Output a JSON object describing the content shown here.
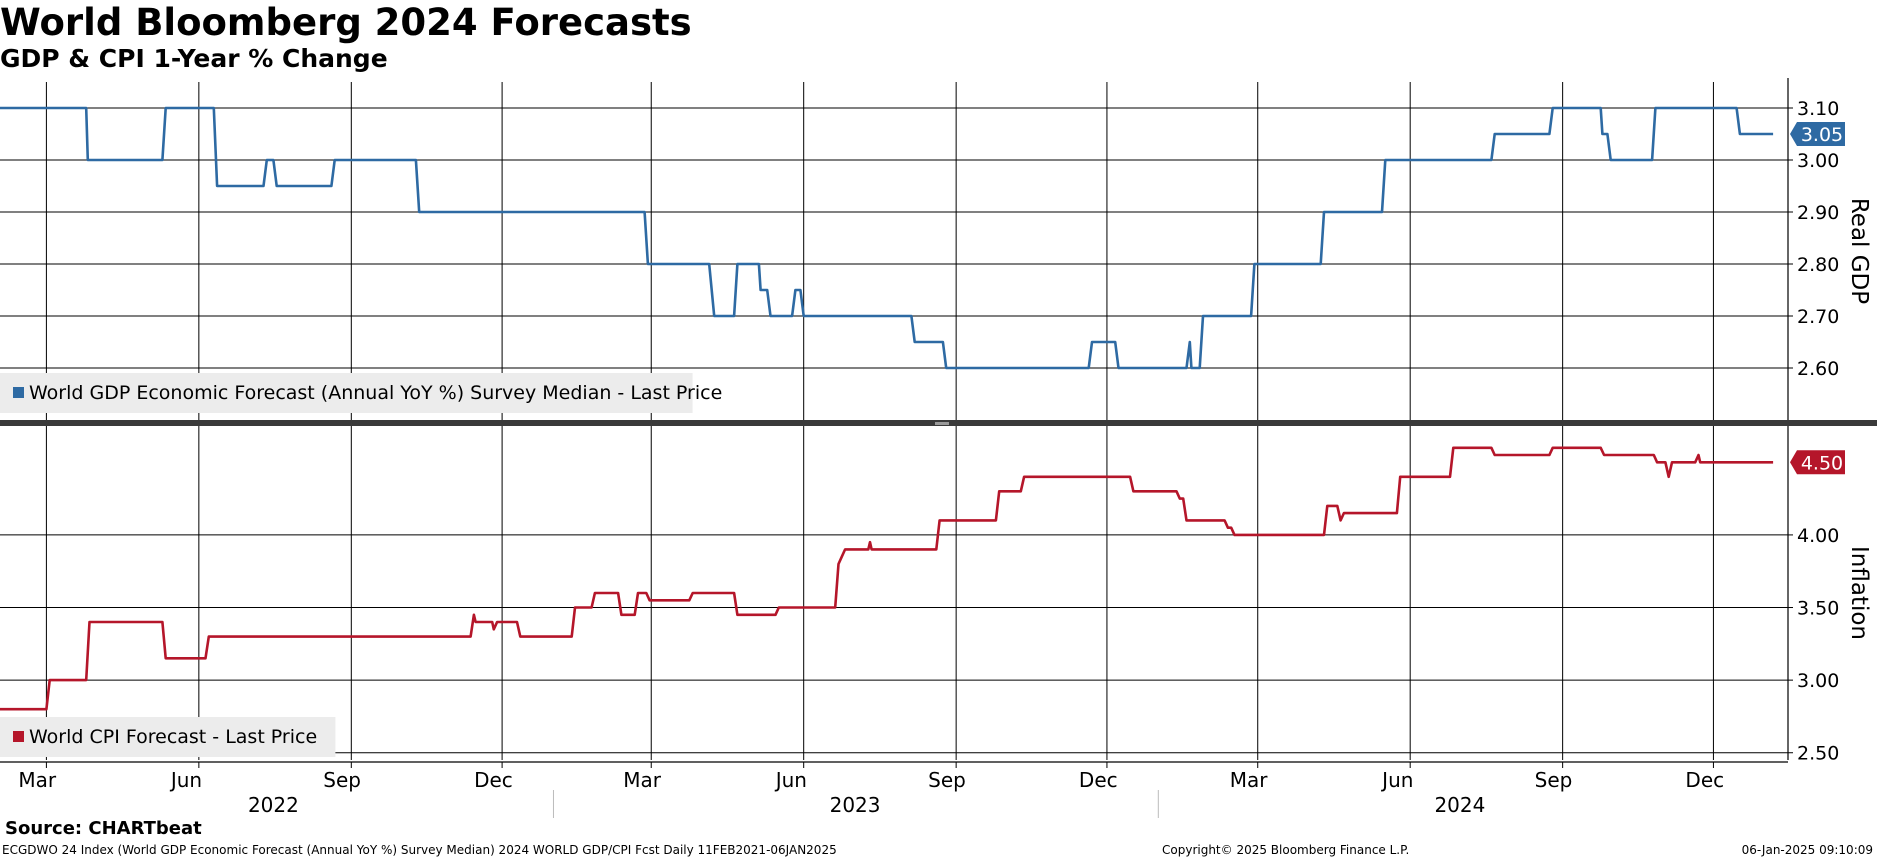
{
  "header": {
    "title": "World Bloomberg 2024 Forecasts",
    "subtitle": "GDP & CPI 1-Year % Change"
  },
  "footer": {
    "source": "Source: CHARTbeat",
    "info": "ECGDWO 24 Index (World GDP Economic Forecast (Annual YoY %) Survey Median) 2024 WORLD GDP/CPI Fcst  Daily 11FEB2021-06JAN2025",
    "copyright": "Copyright© 2025 Bloomberg Finance L.P.",
    "timestamp": "06-Jan-2025 09:10:09"
  },
  "chart_data": [
    {
      "type": "line",
      "panel": "top",
      "axis_label": "Real GDP",
      "x_range": [
        "2022-02-01",
        "2025-01-15"
      ],
      "ylim": [
        2.5,
        3.15
      ],
      "y_ticks": [
        "2.60",
        "2.70",
        "2.80",
        "2.90",
        "3.00",
        "3.10"
      ],
      "grid": true,
      "legend_position": "bottom-left",
      "last_value_label": "3.05",
      "color": "#2e6aa3",
      "series": [
        {
          "name": "World GDP Economic Forecast (Annual YoY %) Survey Median - Last Price",
          "points": [
            [
              "2022-02-01",
              3.1
            ],
            [
              "2022-03-25",
              3.1
            ],
            [
              "2022-03-26",
              3.0
            ],
            [
              "2022-05-10",
              3.0
            ],
            [
              "2022-05-12",
              3.1
            ],
            [
              "2022-06-10",
              3.1
            ],
            [
              "2022-06-12",
              2.95
            ],
            [
              "2022-07-10",
              2.95
            ],
            [
              "2022-07-12",
              3.0
            ],
            [
              "2022-07-16",
              3.0
            ],
            [
              "2022-07-18",
              2.95
            ],
            [
              "2022-08-20",
              2.95
            ],
            [
              "2022-08-22",
              3.0
            ],
            [
              "2022-10-10",
              3.0
            ],
            [
              "2022-10-12",
              2.9
            ],
            [
              "2023-02-25",
              2.9
            ],
            [
              "2023-02-27",
              2.8
            ],
            [
              "2023-04-05",
              2.8
            ],
            [
              "2023-04-08",
              2.7
            ],
            [
              "2023-04-20",
              2.7
            ],
            [
              "2023-04-22",
              2.8
            ],
            [
              "2023-05-05",
              2.8
            ],
            [
              "2023-05-06",
              2.75
            ],
            [
              "2023-05-10",
              2.75
            ],
            [
              "2023-05-12",
              2.7
            ],
            [
              "2023-05-25",
              2.7
            ],
            [
              "2023-05-27",
              2.75
            ],
            [
              "2023-05-30",
              2.75
            ],
            [
              "2023-06-01",
              2.7
            ],
            [
              "2023-08-05",
              2.7
            ],
            [
              "2023-08-07",
              2.65
            ],
            [
              "2023-08-24",
              2.65
            ],
            [
              "2023-08-26",
              2.6
            ],
            [
              "2023-11-20",
              2.6
            ],
            [
              "2023-11-22",
              2.65
            ],
            [
              "2023-12-06",
              2.65
            ],
            [
              "2023-12-08",
              2.6
            ],
            [
              "2024-01-18",
              2.6
            ],
            [
              "2024-01-20",
              2.65
            ],
            [
              "2024-01-21",
              2.6
            ],
            [
              "2024-01-26",
              2.6
            ],
            [
              "2024-01-28",
              2.7
            ],
            [
              "2024-02-26",
              2.7
            ],
            [
              "2024-02-28",
              2.8
            ],
            [
              "2024-04-08",
              2.8
            ],
            [
              "2024-04-10",
              2.9
            ],
            [
              "2024-05-15",
              2.9
            ],
            [
              "2024-05-17",
              3.0
            ],
            [
              "2024-07-20",
              3.0
            ],
            [
              "2024-07-22",
              3.05
            ],
            [
              "2024-08-24",
              3.05
            ],
            [
              "2024-08-26",
              3.1
            ],
            [
              "2024-09-24",
              3.1
            ],
            [
              "2024-09-25",
              3.05
            ],
            [
              "2024-09-28",
              3.05
            ],
            [
              "2024-09-30",
              3.0
            ],
            [
              "2024-10-25",
              3.0
            ],
            [
              "2024-10-27",
              3.1
            ],
            [
              "2024-12-15",
              3.1
            ],
            [
              "2024-12-17",
              3.05
            ],
            [
              "2025-01-06",
              3.05
            ]
          ]
        }
      ]
    },
    {
      "type": "line",
      "panel": "bottom",
      "axis_label": "Inflation",
      "x_range": [
        "2022-02-01",
        "2025-01-15"
      ],
      "ylim": [
        2.45,
        4.75
      ],
      "y_ticks": [
        "2.50",
        "3.00",
        "3.50",
        "4.00"
      ],
      "grid": true,
      "legend_position": "bottom-left",
      "last_value_label": "4.50",
      "color": "#b5162a",
      "series": [
        {
          "name": "World CPI Forecast - Last Price",
          "points": [
            [
              "2022-02-01",
              2.8
            ],
            [
              "2022-03-01",
              2.8
            ],
            [
              "2022-03-03",
              3.0
            ],
            [
              "2022-03-25",
              3.0
            ],
            [
              "2022-03-27",
              3.4
            ],
            [
              "2022-05-10",
              3.4
            ],
            [
              "2022-05-12",
              3.15
            ],
            [
              "2022-06-05",
              3.15
            ],
            [
              "2022-06-07",
              3.3
            ],
            [
              "2022-11-12",
              3.3
            ],
            [
              "2022-11-14",
              3.45
            ],
            [
              "2022-11-15",
              3.4
            ],
            [
              "2022-11-25",
              3.4
            ],
            [
              "2022-11-26",
              3.35
            ],
            [
              "2022-11-28",
              3.4
            ],
            [
              "2022-12-10",
              3.4
            ],
            [
              "2022-12-12",
              3.3
            ],
            [
              "2023-01-12",
              3.3
            ],
            [
              "2023-01-14",
              3.5
            ],
            [
              "2023-01-24",
              3.5
            ],
            [
              "2023-01-26",
              3.6
            ],
            [
              "2023-02-09",
              3.6
            ],
            [
              "2023-02-11",
              3.45
            ],
            [
              "2023-02-19",
              3.45
            ],
            [
              "2023-02-21",
              3.6
            ],
            [
              "2023-02-26",
              3.6
            ],
            [
              "2023-02-28",
              3.55
            ],
            [
              "2023-03-24",
              3.55
            ],
            [
              "2023-03-26",
              3.6
            ],
            [
              "2023-04-20",
              3.6
            ],
            [
              "2023-04-22",
              3.45
            ],
            [
              "2023-05-15",
              3.45
            ],
            [
              "2023-05-17",
              3.5
            ],
            [
              "2023-06-20",
              3.5
            ],
            [
              "2023-06-22",
              3.8
            ],
            [
              "2023-06-24",
              3.85
            ],
            [
              "2023-06-26",
              3.9
            ],
            [
              "2023-07-10",
              3.9
            ],
            [
              "2023-07-11",
              3.95
            ],
            [
              "2023-07-12",
              3.9
            ],
            [
              "2023-08-20",
              3.9
            ],
            [
              "2023-08-22",
              4.1
            ],
            [
              "2023-09-25",
              4.1
            ],
            [
              "2023-09-27",
              4.3
            ],
            [
              "2023-10-10",
              4.3
            ],
            [
              "2023-10-12",
              4.4
            ],
            [
              "2023-12-15",
              4.4
            ],
            [
              "2023-12-17",
              4.3
            ],
            [
              "2024-01-12",
              4.3
            ],
            [
              "2024-01-14",
              4.25
            ],
            [
              "2024-01-16",
              4.25
            ],
            [
              "2024-01-18",
              4.1
            ],
            [
              "2024-02-10",
              4.1
            ],
            [
              "2024-02-12",
              4.05
            ],
            [
              "2024-02-14",
              4.05
            ],
            [
              "2024-02-16",
              4.0
            ],
            [
              "2024-04-10",
              4.0
            ],
            [
              "2024-04-12",
              4.2
            ],
            [
              "2024-04-18",
              4.2
            ],
            [
              "2024-04-20",
              4.1
            ],
            [
              "2024-04-22",
              4.15
            ],
            [
              "2024-05-24",
              4.15
            ],
            [
              "2024-05-26",
              4.4
            ],
            [
              "2024-06-25",
              4.4
            ],
            [
              "2024-06-27",
              4.6
            ],
            [
              "2024-07-20",
              4.6
            ],
            [
              "2024-07-22",
              4.55
            ],
            [
              "2024-08-24",
              4.55
            ],
            [
              "2024-08-26",
              4.6
            ],
            [
              "2024-09-24",
              4.6
            ],
            [
              "2024-09-26",
              4.55
            ],
            [
              "2024-10-26",
              4.55
            ],
            [
              "2024-10-28",
              4.5
            ],
            [
              "2024-11-02",
              4.5
            ],
            [
              "2024-11-04",
              4.4
            ],
            [
              "2024-11-06",
              4.5
            ],
            [
              "2024-11-20",
              4.5
            ],
            [
              "2024-11-22",
              4.55
            ],
            [
              "2024-11-23",
              4.5
            ],
            [
              "2025-01-06",
              4.5
            ]
          ]
        }
      ]
    }
  ],
  "x_axis": {
    "month_ticks": [
      {
        "label": "Mar",
        "date": "2022-03-01"
      },
      {
        "label": "Jun",
        "date": "2022-06-01"
      },
      {
        "label": "Sep",
        "date": "2022-09-01"
      },
      {
        "label": "Dec",
        "date": "2022-12-01"
      },
      {
        "label": "Mar",
        "date": "2023-03-01"
      },
      {
        "label": "Jun",
        "date": "2023-06-01"
      },
      {
        "label": "Sep",
        "date": "2023-09-01"
      },
      {
        "label": "Dec",
        "date": "2023-12-01"
      },
      {
        "label": "Mar",
        "date": "2024-03-01"
      },
      {
        "label": "Jun",
        "date": "2024-06-01"
      },
      {
        "label": "Sep",
        "date": "2024-09-01"
      },
      {
        "label": "Dec",
        "date": "2024-12-01"
      }
    ],
    "year_labels": [
      {
        "label": "2022",
        "date": "2022-07-16"
      },
      {
        "label": "2023",
        "date": "2023-07-02"
      },
      {
        "label": "2024",
        "date": "2024-07-01"
      }
    ],
    "year_separators": [
      "2023-01-01",
      "2024-01-01"
    ]
  }
}
